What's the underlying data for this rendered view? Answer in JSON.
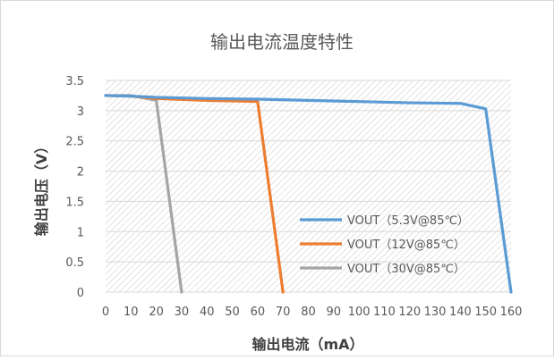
{
  "chart_data": {
    "type": "line",
    "title": "输出电流温度特性",
    "xlabel": "输出电流（mA）",
    "ylabel": "输出电压（V）",
    "x_ticks": [
      "0",
      "10",
      "20",
      "30",
      "40",
      "50",
      "60",
      "70",
      "80",
      "90",
      "100",
      "110",
      "120",
      "130",
      "140",
      "150",
      "160"
    ],
    "y_ticks": [
      "0",
      "0.5",
      "1",
      "1.5",
      "2",
      "2.5",
      "3",
      "3.5"
    ],
    "xlim": [
      0,
      160
    ],
    "ylim": [
      0,
      3.5
    ],
    "grid": true,
    "legend_position": "lower-right",
    "series": [
      {
        "name": "VOUT（5.3V@85℃）",
        "color": "#5B9BD5",
        "points": [
          [
            0,
            3.25
          ],
          [
            10,
            3.24
          ],
          [
            20,
            3.22
          ],
          [
            40,
            3.2
          ],
          [
            60,
            3.19
          ],
          [
            80,
            3.17
          ],
          [
            100,
            3.15
          ],
          [
            120,
            3.13
          ],
          [
            140,
            3.12
          ],
          [
            150,
            3.03
          ],
          [
            160,
            0
          ]
        ]
      },
      {
        "name": "VOUT（12V@85℃）",
        "color": "#ED7D31",
        "points": [
          [
            0,
            3.25
          ],
          [
            10,
            3.24
          ],
          [
            20,
            3.2
          ],
          [
            40,
            3.17
          ],
          [
            60,
            3.15
          ],
          [
            70,
            0
          ]
        ]
      },
      {
        "name": "VOUT（30V@85℃）",
        "color": "#A5A5A5",
        "points": [
          [
            0,
            3.25
          ],
          [
            10,
            3.25
          ],
          [
            20,
            3.17
          ],
          [
            30,
            0
          ]
        ]
      }
    ]
  }
}
